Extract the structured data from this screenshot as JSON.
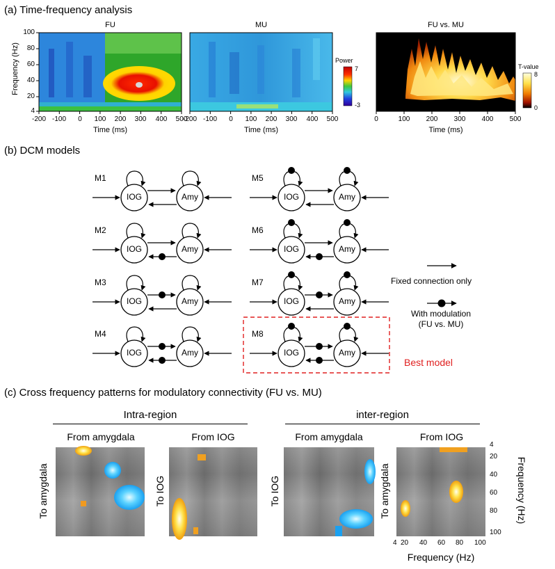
{
  "panel_a": {
    "title": "(a) Time-frequency analysis",
    "plots": [
      {
        "title": "FU"
      },
      {
        "title": "MU"
      },
      {
        "title": "FU vs. MU"
      }
    ],
    "ylabel": "Frequency (Hz)",
    "xlabel": "Time (ms)",
    "yticks": [
      "100",
      "80",
      "60",
      "40",
      "20",
      "4"
    ],
    "xticks_long": [
      "-200",
      "-100",
      "0",
      "100",
      "200",
      "300",
      "400",
      "500"
    ],
    "xticks_short": [
      "0",
      "100",
      "200",
      "300",
      "400",
      "500"
    ],
    "power_colorbar": {
      "label": "Power",
      "max": "7",
      "min": "-3"
    },
    "tvalue_colorbar": {
      "label": "T-value",
      "max": "8",
      "min": "0"
    }
  },
  "panel_b": {
    "title": "(b) DCM models",
    "node_left": "IOG",
    "node_right": "Amy",
    "models": [
      "M1",
      "M2",
      "M3",
      "M4",
      "M5",
      "M6",
      "M7",
      "M8"
    ],
    "legend_fixed": "Fixed connection only",
    "legend_mod_1": "With modulation",
    "legend_mod_2": "(FU vs. MU)",
    "best_model": "Best model",
    "best_color": "#e02020"
  },
  "panel_c": {
    "title": "(c) Cross frequency patterns for modulatory connectivity (FU vs. MU)",
    "intra_label": "Intra-region",
    "inter_label": "inter-region",
    "from_amygdala": "From amygdala",
    "from_iog": "From IOG",
    "to_amygdala": "To amygdala",
    "to_iog": "To IOG",
    "yticks": [
      "4",
      "20",
      "40",
      "60",
      "80",
      "100"
    ],
    "xticks": [
      "4",
      "20",
      "40",
      "60",
      "80",
      "100"
    ],
    "ylabel": "Frequency (Hz)",
    "xlabel": "Frequency (Hz)"
  }
}
